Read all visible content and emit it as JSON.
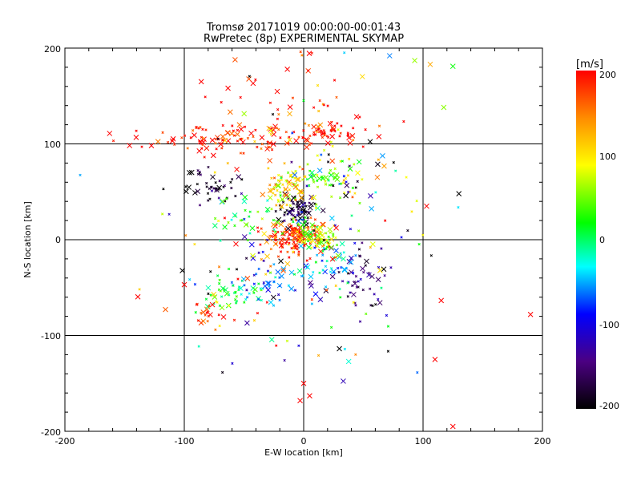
{
  "chart_data": {
    "type": "scatter",
    "title": "Tromsø 20171019 00:00:00-00:01:43",
    "subtitle": "RwPretec (8p) EXPERIMENTAL SKYMAP",
    "xlabel": "E-W location [km]",
    "ylabel": "N-S location [km]",
    "xlim": [
      -200,
      200
    ],
    "ylim": [
      -200,
      200
    ],
    "x_ticks": [
      "-200",
      "-100",
      "0",
      "100",
      "200"
    ],
    "y_ticks": [
      "-200",
      "-100",
      "0",
      "100",
      "200"
    ],
    "grid": true,
    "colorbar": {
      "label": "[m/s]",
      "range": [
        -200,
        200
      ],
      "ticks": [
        "200",
        "100",
        "0",
        "-100",
        "-200"
      ],
      "colormap": [
        "#000000",
        "#4b0082",
        "#0000ff",
        "#00ffff",
        "#00ff00",
        "#ffff00",
        "#ff8c00",
        "#ff0000"
      ]
    },
    "clusters": [
      {
        "x": -5,
        "y": 32,
        "sx": 8,
        "sy": 8,
        "n": 70,
        "v": -185
      },
      {
        "x": -8,
        "y": 2,
        "sx": 14,
        "sy": 8,
        "n": 150,
        "v": 185
      },
      {
        "x": 10,
        "y": 5,
        "sx": 10,
        "sy": 8,
        "n": 60,
        "v": 60
      },
      {
        "x": -15,
        "y": 55,
        "sx": 10,
        "sy": 10,
        "n": 70,
        "v": 110
      },
      {
        "x": 15,
        "y": 65,
        "sx": 10,
        "sy": 5,
        "n": 35,
        "v": 30
      },
      {
        "x": -50,
        "y": 105,
        "sx": 45,
        "sy": 8,
        "n": 120,
        "v": 195
      },
      {
        "x": 20,
        "y": 113,
        "sx": 12,
        "sy": 4,
        "n": 40,
        "v": 195
      },
      {
        "x": -78,
        "y": 58,
        "sx": 12,
        "sy": 10,
        "n": 45,
        "v": -195
      },
      {
        "x": -60,
        "y": -55,
        "sx": 12,
        "sy": 10,
        "n": 45,
        "v": 10
      },
      {
        "x": -78,
        "y": -78,
        "sx": 8,
        "sy": 6,
        "n": 20,
        "v": 195
      },
      {
        "x": 45,
        "y": -40,
        "sx": 18,
        "sy": 14,
        "n": 50,
        "v": -150
      },
      {
        "x": 20,
        "y": -25,
        "sx": 12,
        "sy": 10,
        "n": 40,
        "v": -40
      },
      {
        "x": -30,
        "y": -45,
        "sx": 12,
        "sy": 10,
        "n": 35,
        "v": -60
      },
      {
        "x": -55,
        "y": 20,
        "sx": 14,
        "sy": 10,
        "n": 30,
        "v": 20
      },
      {
        "x": -20,
        "y": 160,
        "sx": 40,
        "sy": 25,
        "n": 40,
        "v": 190
      },
      {
        "x": 35,
        "y": 75,
        "sx": 20,
        "sy": 15,
        "n": 25,
        "v": 80
      },
      {
        "x": 0,
        "y": 0,
        "sx": 60,
        "sy": 70,
        "n": 200,
        "v": 0
      }
    ],
    "labeled_points": [
      {
        "x": 72,
        "y": 192,
        "v": -60
      },
      {
        "x": 93,
        "y": 187,
        "v": 60
      },
      {
        "x": 106,
        "y": 183,
        "v": 130
      },
      {
        "x": 125,
        "y": 181,
        "v": 20
      },
      {
        "x": 130,
        "y": 48,
        "v": -200
      },
      {
        "x": 103,
        "y": 35,
        "v": 200
      },
      {
        "x": -100,
        "y": -47,
        "v": 200
      },
      {
        "x": 0,
        "y": -150,
        "v": 200
      },
      {
        "x": -3,
        "y": -168,
        "v": 200
      },
      {
        "x": 5,
        "y": -163,
        "v": 200
      },
      {
        "x": 190,
        "y": -78,
        "v": 200
      },
      {
        "x": 125,
        "y": -195,
        "v": 200
      },
      {
        "x": 110,
        "y": -125,
        "v": 200
      }
    ]
  }
}
